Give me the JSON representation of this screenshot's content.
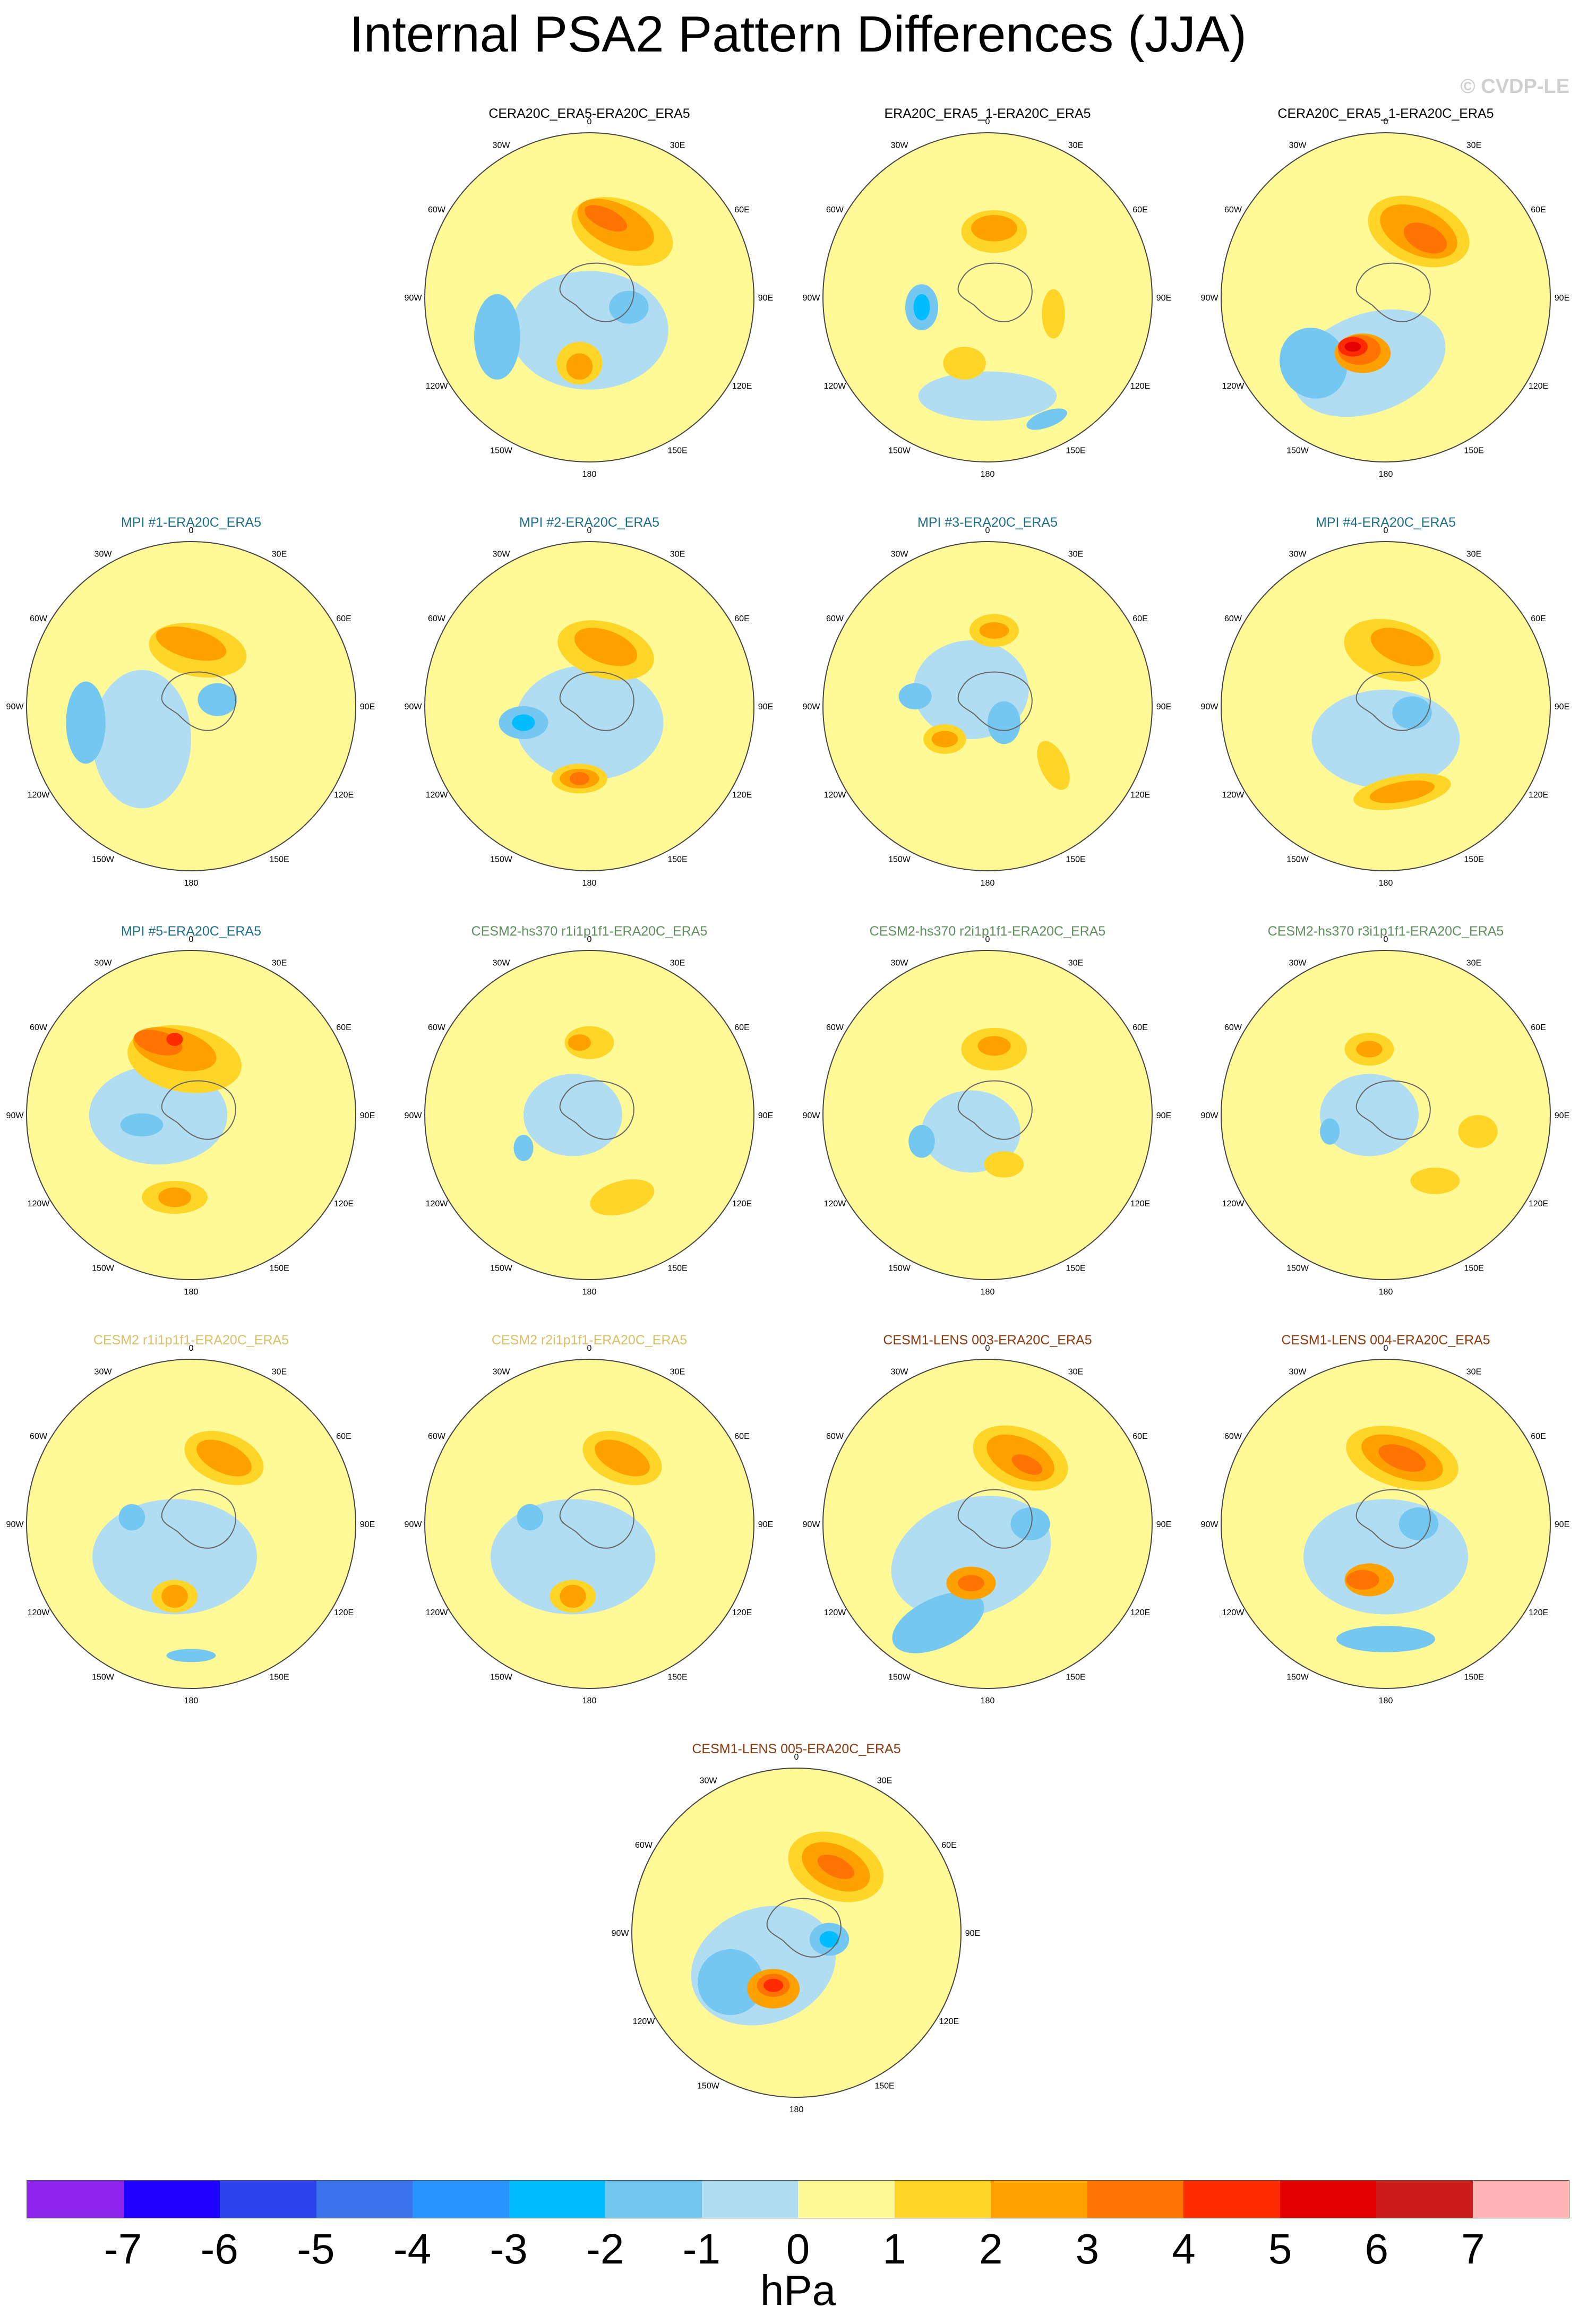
{
  "title": "Internal PSA2 Pattern Differences (JJA)",
  "watermark": "© CVDP-LE",
  "lon_labels": [
    "0",
    "30E",
    "60E",
    "90E",
    "120E",
    "150E",
    "180",
    "150W",
    "120W",
    "90W",
    "60W",
    "30W"
  ],
  "colorbar": {
    "colors": [
      "#8f24ee",
      "#1e00ff",
      "#2a43ec",
      "#3a74ec",
      "#2894ff",
      "#00bdff",
      "#74c7f1",
      "#b1ddf2",
      "#fff997",
      "#ffd628",
      "#ffa100",
      "#ff7400",
      "#ff2b00",
      "#e40000",
      "#cc1b1b",
      "#ffb3b3"
    ],
    "tick_labels": [
      "-7",
      "-6",
      "-5",
      "-4",
      "-3",
      "-2",
      "-1",
      "0",
      "1",
      "2",
      "3",
      "4",
      "5",
      "6",
      "7"
    ],
    "unit": "hPa"
  },
  "panels": [
    {
      "title": "CERA20C_ERA5-ERA20C_ERA5",
      "title_color": "#000000"
    },
    {
      "title": "ERA20C_ERA5_1-ERA20C_ERA5",
      "title_color": "#000000"
    },
    {
      "title": "CERA20C_ERA5_1-ERA20C_ERA5",
      "title_color": "#000000"
    },
    {
      "title": "MPI #1-ERA20C_ERA5",
      "title_color": "#1f6f86"
    },
    {
      "title": "MPI #2-ERA20C_ERA5",
      "title_color": "#1f6f86"
    },
    {
      "title": "MPI #3-ERA20C_ERA5",
      "title_color": "#1f6f86"
    },
    {
      "title": "MPI #4-ERA20C_ERA5",
      "title_color": "#1f6f86"
    },
    {
      "title": "MPI #5-ERA20C_ERA5",
      "title_color": "#1f6f86"
    },
    {
      "title": "CESM2-hs370 r1i1p1f1-ERA20C_ERA5",
      "title_color": "#5f8f5f"
    },
    {
      "title": "CESM2-hs370 r2i1p1f1-ERA20C_ERA5",
      "title_color": "#5f8f5f"
    },
    {
      "title": "CESM2-hs370 r3i1p1f1-ERA20C_ERA5",
      "title_color": "#5f8f5f"
    },
    {
      "title": "CESM2 r1i1p1f1-ERA20C_ERA5",
      "title_color": "#d9c16a"
    },
    {
      "title": "CESM2 r2i1p1f1-ERA20C_ERA5",
      "title_color": "#d9c16a"
    },
    {
      "title": "CESM1-LENS 003-ERA20C_ERA5",
      "title_color": "#8b3a10"
    },
    {
      "title": "CESM1-LENS 004-ERA20C_ERA5",
      "title_color": "#8b3a10"
    },
    {
      "title": "CESM1-LENS 005-ERA20C_ERA5",
      "title_color": "#8b3a10"
    }
  ]
}
